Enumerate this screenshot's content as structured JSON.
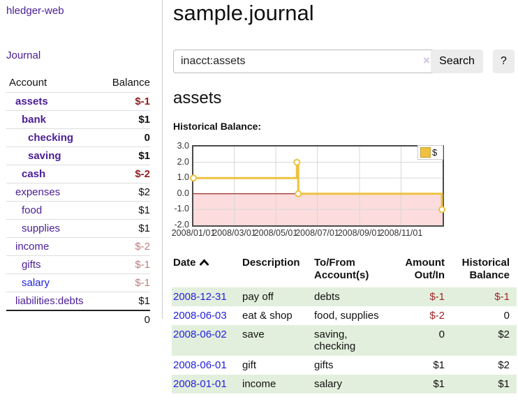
{
  "sidebar": {
    "brand": "hledger-web",
    "nav": {
      "journal": "Journal"
    },
    "accounts_table": {
      "header": {
        "account": "Account",
        "balance": "Balance"
      },
      "rows": [
        {
          "name": "assets",
          "balance": "$-1"
        },
        {
          "name": "bank",
          "balance": "$1"
        },
        {
          "name": "checking",
          "balance": "0"
        },
        {
          "name": "saving",
          "balance": "$1"
        },
        {
          "name": "cash",
          "balance": "$-2"
        },
        {
          "name": "expenses",
          "balance": "$2"
        },
        {
          "name": "food",
          "balance": "$1"
        },
        {
          "name": "supplies",
          "balance": "$1"
        },
        {
          "name": "income",
          "balance": "$-2"
        },
        {
          "name": "gifts",
          "balance": "$-1"
        },
        {
          "name": "salary",
          "balance": "$-1"
        },
        {
          "name": "liabilities:debts",
          "balance": "$1"
        }
      ],
      "total": "0"
    }
  },
  "header": {
    "title": "sample.journal"
  },
  "search": {
    "value": "inacct:assets",
    "clear_icon": "×",
    "search_button": "Search",
    "help_button": "?"
  },
  "account_page": {
    "title": "assets",
    "chart_heading": "Historical Balance:"
  },
  "chart_data": {
    "type": "line",
    "title": "Historical Balance",
    "step": true,
    "series": [
      {
        "name": "$",
        "color": "#EDC240",
        "points": [
          {
            "date": "2008-01-01",
            "value": 1
          },
          {
            "date": "2008-06-01",
            "value": 2
          },
          {
            "date": "2008-06-03",
            "value": 0
          },
          {
            "date": "2008-12-31",
            "value": -1
          }
        ]
      }
    ],
    "x_ticks": [
      "2008/01/01",
      "2008/03/01",
      "2008/05/01",
      "2008/07/01",
      "2008/09/01",
      "2008/11/01"
    ],
    "y_ticks": [
      3.0,
      2.0,
      1.0,
      0.0,
      -1.0,
      -2.0
    ],
    "xlim": [
      "2008-01-01",
      "2009-01-01"
    ],
    "ylim": [
      -2,
      3
    ],
    "legend": {
      "label": "$",
      "position": "top-right"
    },
    "grid": true,
    "negative_region_color": "#fcdcdc",
    "zero_line_color": "#8b0000",
    "gridline_color": "#d8d8d8"
  },
  "register": {
    "headers": {
      "date": "Date",
      "description": "Description",
      "tofrom": "To/From Account(s)",
      "amount": "Amount Out/In",
      "balance": "Historical Balance"
    },
    "rows": [
      {
        "date": "2008-12-31",
        "description": "pay off",
        "accounts": "debts",
        "amount": "$-1",
        "balance": "$-1"
      },
      {
        "date": "2008-06-03",
        "description": "eat & shop",
        "accounts": "food, supplies",
        "amount": "$-2",
        "balance": "0"
      },
      {
        "date": "2008-06-02",
        "description": "save",
        "accounts": "saving, checking",
        "amount": "0",
        "balance": "$2"
      },
      {
        "date": "2008-06-01",
        "description": "gift",
        "accounts": "gifts",
        "amount": "$1",
        "balance": "$2"
      },
      {
        "date": "2008-01-01",
        "description": "income",
        "accounts": "salary",
        "amount": "$1",
        "balance": "$1"
      }
    ]
  }
}
